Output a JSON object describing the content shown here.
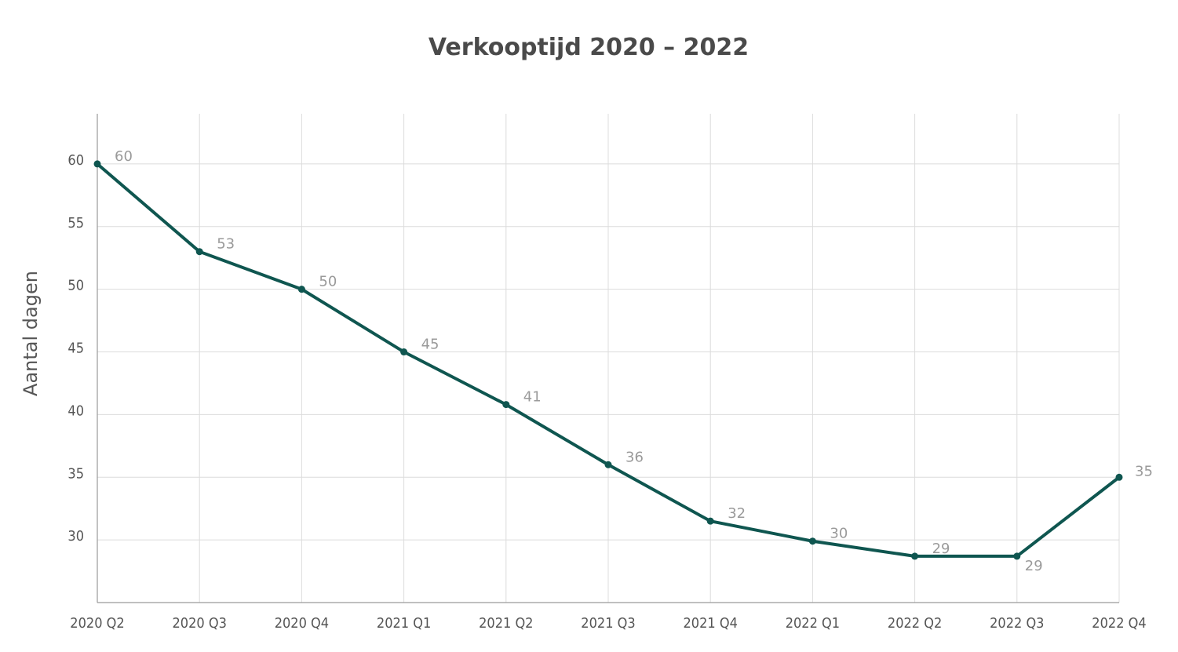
{
  "chart_data": {
    "type": "line",
    "title": "Verkooptijd 2020 – 2022",
    "xlabel": "",
    "ylabel": "Aantal dagen",
    "categories": [
      "2020 Q2",
      "2020 Q3",
      "2020 Q4",
      "2021 Q1",
      "2021 Q2",
      "2021 Q3",
      "2021 Q4",
      "2022 Q1",
      "2022 Q2",
      "2022 Q3",
      "2022 Q4"
    ],
    "values": [
      60,
      53,
      50,
      45,
      40.8,
      36,
      31.5,
      29.9,
      28.7,
      28.7,
      35
    ],
    "data_labels": [
      "60",
      "53",
      "50",
      "45",
      "41",
      "36",
      "32",
      "30",
      "29",
      "29",
      "35"
    ],
    "yticks": [
      30,
      35,
      40,
      45,
      50,
      55,
      60
    ],
    "ylim": [
      25,
      64
    ],
    "grid": true,
    "legend": "none",
    "line_color": "#0f5650",
    "grid_color": "#dcdcdc",
    "label_color": "#9a9a9a"
  }
}
